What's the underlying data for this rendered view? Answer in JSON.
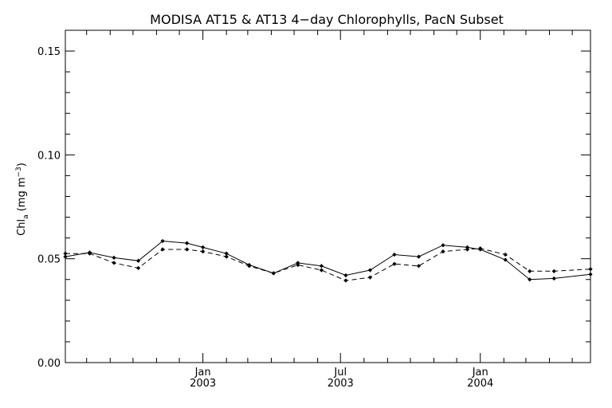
{
  "chart_data": {
    "type": "line",
    "title": "MODISA AT15 & AT13 4−day Chlorophylls, PacN Subset",
    "ylabel_main": "Chl",
    "ylabel_sub": "a",
    "ylabel_unit": " (mg m",
    "ylabel_exp": "−3",
    "ylabel_close": ")",
    "ylim": [
      0.0,
      0.16
    ],
    "yticks": [
      {
        "value": 0.0,
        "label": "0.00"
      },
      {
        "value": 0.05,
        "label": "0.05"
      },
      {
        "value": 0.1,
        "label": "0.10"
      },
      {
        "value": 0.15,
        "label": "0.15"
      }
    ],
    "xlim": [
      "2002-07-04",
      "2004-05-25"
    ],
    "xticks": [
      {
        "date": "2003-01-01",
        "month": "Jan",
        "year": "2003"
      },
      {
        "date": "2003-07-01",
        "month": "Jul",
        "year": "2003"
      },
      {
        "date": "2004-01-01",
        "month": "Jan",
        "year": "2004"
      }
    ],
    "x": [
      "2002-07-04",
      "2002-08-05",
      "2002-09-06",
      "2002-10-08",
      "2002-11-09",
      "2002-12-11",
      "2003-01-01",
      "2003-02-01",
      "2003-03-03",
      "2003-04-04",
      "2003-05-06",
      "2003-06-06",
      "2003-07-08",
      "2003-08-09",
      "2003-09-10",
      "2003-10-12",
      "2003-11-13",
      "2003-12-15",
      "2004-01-01",
      "2004-02-03",
      "2004-03-06",
      "2004-04-07",
      "2004-05-25"
    ],
    "series": [
      {
        "style": "solid",
        "values": [
          0.051,
          0.053,
          0.0505,
          0.049,
          0.0585,
          0.0575,
          0.0555,
          0.0525,
          0.047,
          0.043,
          0.048,
          0.0465,
          0.042,
          0.0445,
          0.052,
          0.051,
          0.0565,
          0.0555,
          0.0545,
          0.0495,
          0.04,
          0.0405,
          0.0425
        ]
      },
      {
        "style": "dashed",
        "values": [
          0.0525,
          0.0525,
          0.048,
          0.0455,
          0.0545,
          0.0545,
          0.0535,
          0.051,
          0.0465,
          0.043,
          0.047,
          0.0445,
          0.0395,
          0.041,
          0.0475,
          0.0465,
          0.0535,
          0.0545,
          0.055,
          0.052,
          0.044,
          0.044,
          0.045
        ]
      }
    ],
    "grid": false,
    "legend": "none"
  }
}
